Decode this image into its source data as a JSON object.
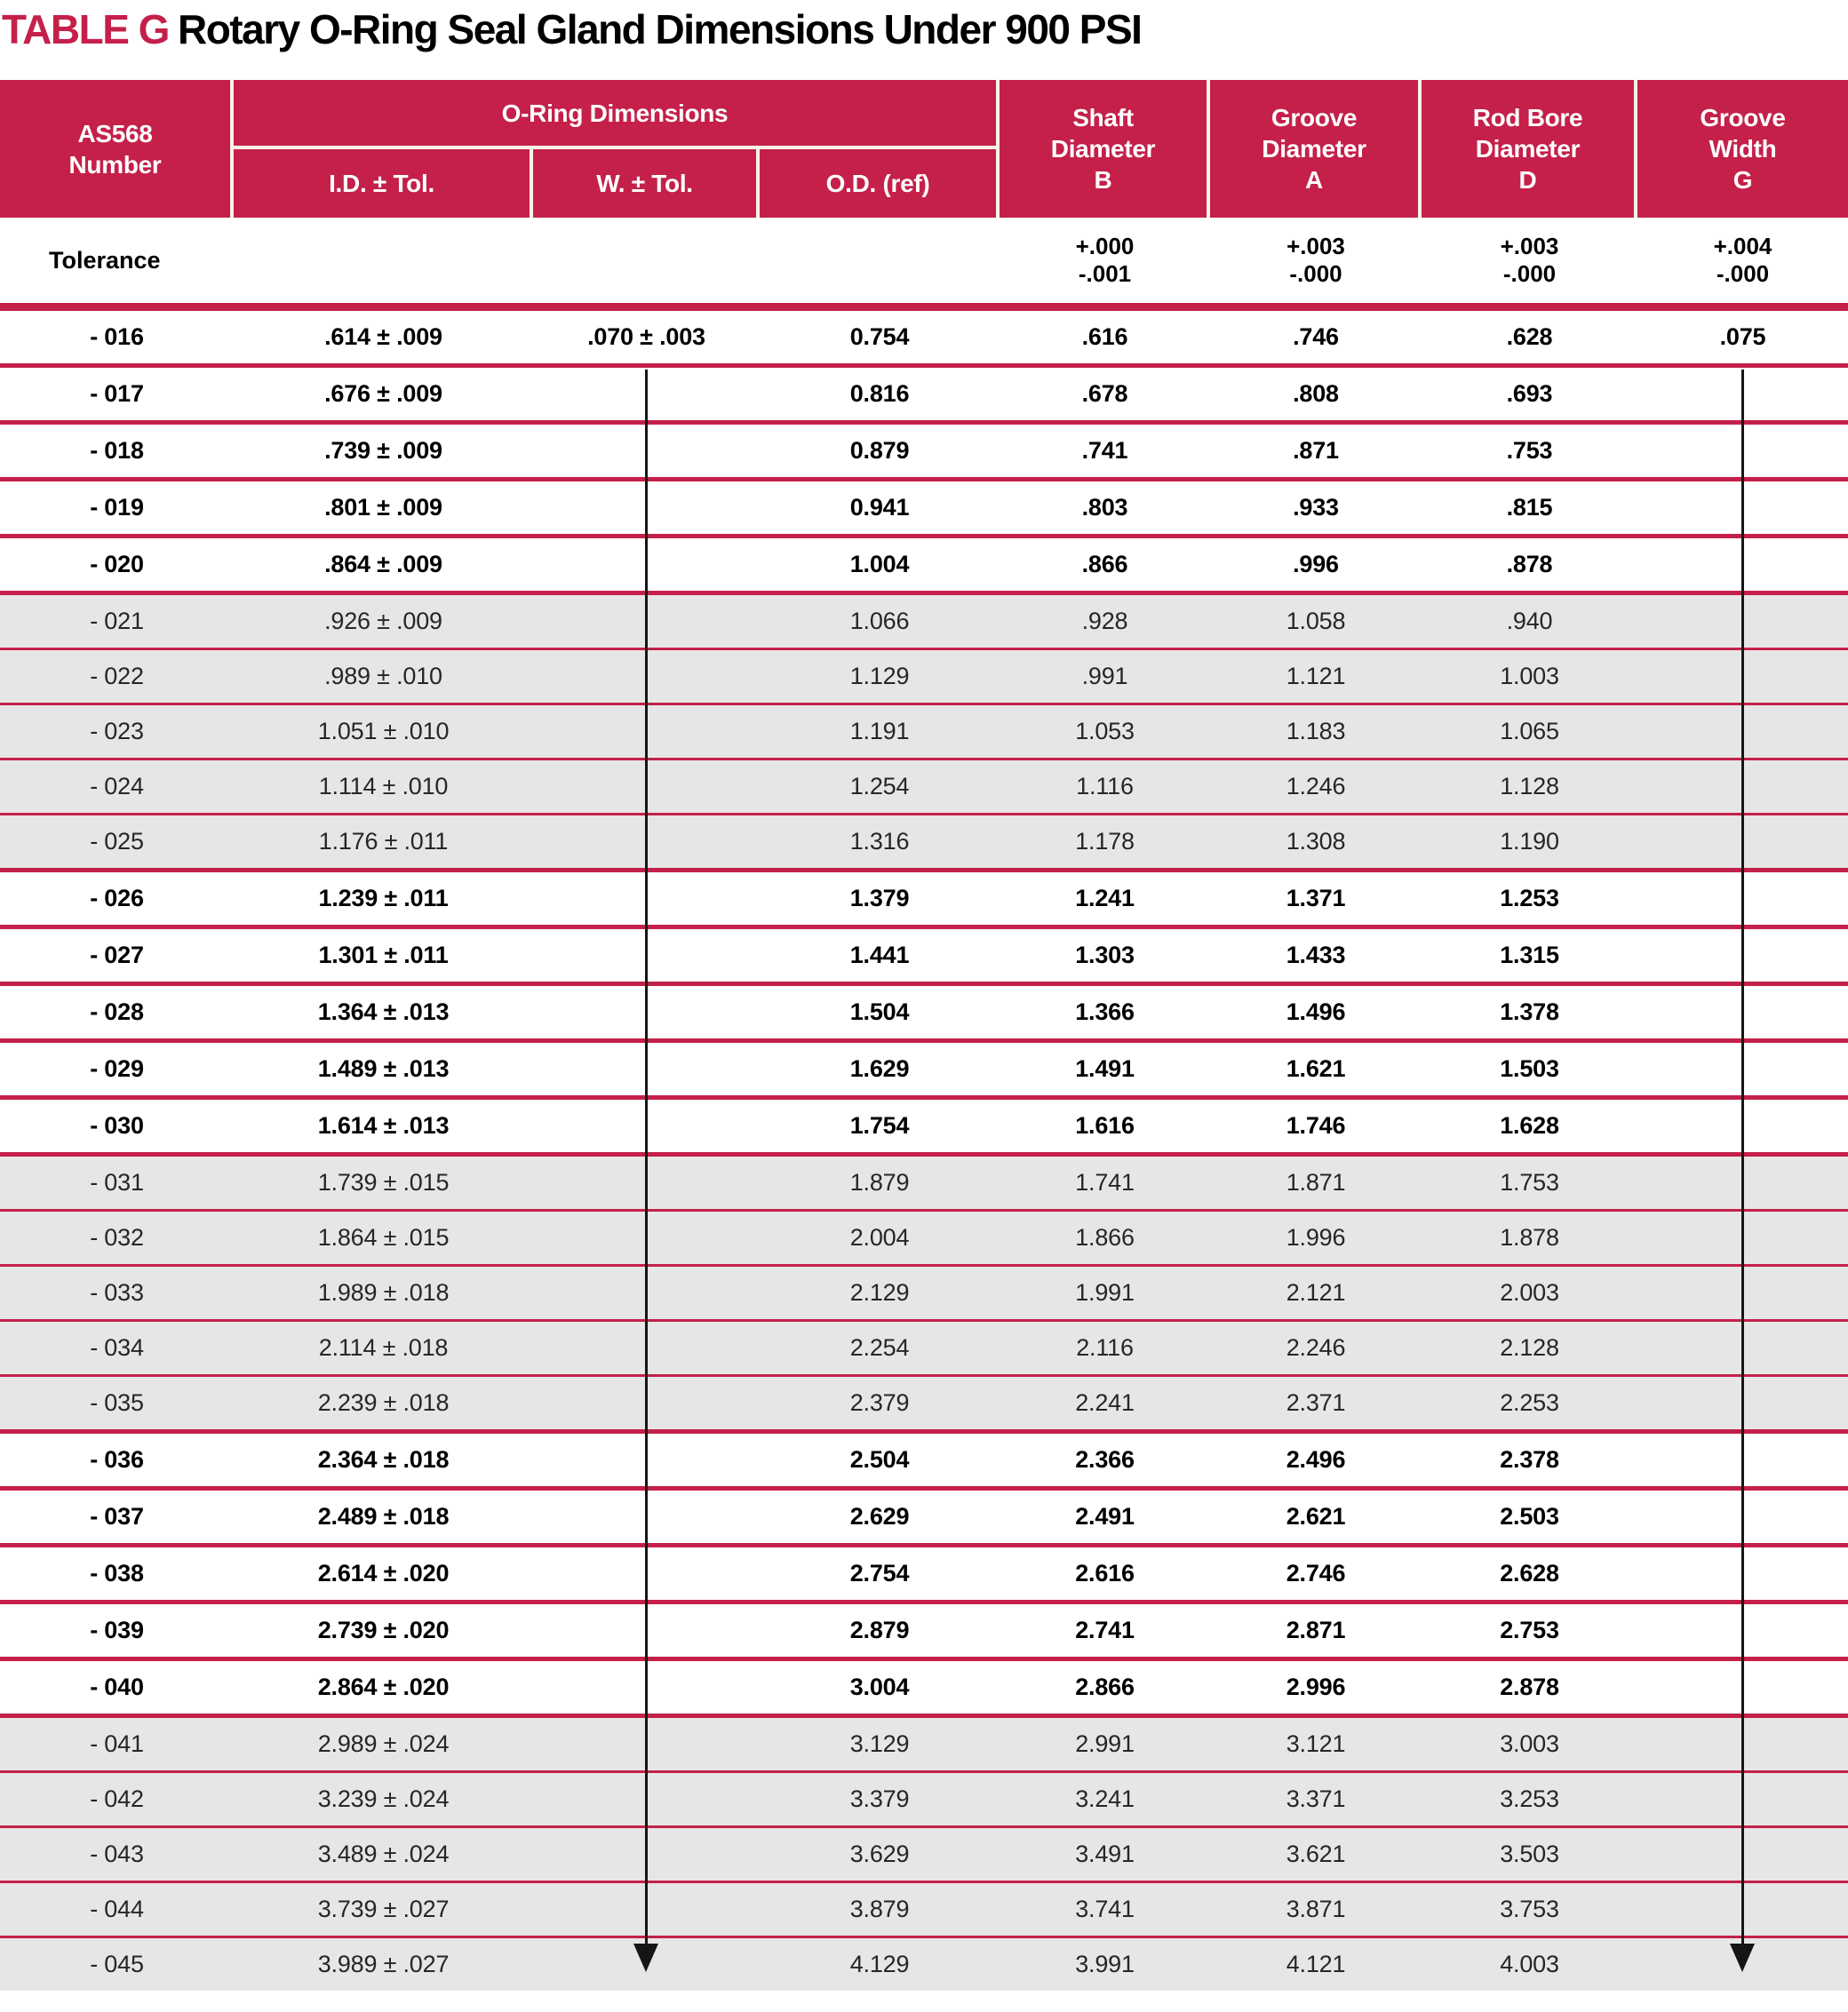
{
  "title": {
    "tag": "TABLE G",
    "text": "Rotary O-Ring Seal Gland Dimensions Under 900 PSI"
  },
  "colors": {
    "accent_crimson": "#C4204A",
    "row_alt_gray": "#E6E6E6",
    "header_text": "#FFFFFF",
    "arrow_black": "#151515"
  },
  "header": {
    "as568": "AS568\nNumber",
    "oring_group": "O-Ring Dimensions",
    "id_tol": "I.D. ± Tol.",
    "w_tol": "W. ± Tol.",
    "od_ref": "O.D. (ref)",
    "shaft": "Shaft\nDiameter\nB",
    "groove_dia": "Groove\nDiameter\nA",
    "rod_bore": "Rod Bore\nDiameter\nD",
    "groove_width": "Groove\nWidth\nG"
  },
  "tolerance_row": {
    "label": "Tolerance",
    "shaft_b": "+.000\n-.001",
    "groove_a": "+.003\n-.000",
    "rod_bore_d": "+.003\n-.000",
    "groove_g": "+.004\n-.000"
  },
  "table": {
    "columns": [
      "AS568 Number",
      "I.D. ± Tol.",
      "W. ± Tol.",
      "O.D. (ref)",
      "Shaft Diameter B",
      "Groove Diameter A",
      "Rod Bore Diameter D",
      "Groove Width G"
    ],
    "rows": [
      [
        "- 016",
        ".614 ± .009",
        ".070 ± .003",
        "0.754",
        ".616",
        ".746",
        ".628",
        ".075"
      ],
      [
        "- 017",
        ".676 ± .009",
        "",
        "0.816",
        ".678",
        ".808",
        ".693",
        ""
      ],
      [
        "- 018",
        ".739 ± .009",
        "",
        "0.879",
        ".741",
        ".871",
        ".753",
        ""
      ],
      [
        "- 019",
        ".801 ± .009",
        "",
        "0.941",
        ".803",
        ".933",
        ".815",
        ""
      ],
      [
        "- 020",
        ".864 ± .009",
        "",
        "1.004",
        ".866",
        ".996",
        ".878",
        ""
      ],
      [
        "- 021",
        ".926 ± .009",
        "",
        "1.066",
        ".928",
        "1.058",
        ".940",
        ""
      ],
      [
        "- 022",
        ".989 ± .010",
        "",
        "1.129",
        ".991",
        "1.121",
        "1.003",
        ""
      ],
      [
        "- 023",
        "1.051 ± .010",
        "",
        "1.191",
        "1.053",
        "1.183",
        "1.065",
        ""
      ],
      [
        "- 024",
        "1.114 ± .010",
        "",
        "1.254",
        "1.116",
        "1.246",
        "1.128",
        ""
      ],
      [
        "- 025",
        "1.176 ± .011",
        "",
        "1.316",
        "1.178",
        "1.308",
        "1.190",
        ""
      ],
      [
        "- 026",
        "1.239 ± .011",
        "",
        "1.379",
        "1.241",
        "1.371",
        "1.253",
        ""
      ],
      [
        "- 027",
        "1.301 ± .011",
        "",
        "1.441",
        "1.303",
        "1.433",
        "1.315",
        ""
      ],
      [
        "- 028",
        "1.364 ± .013",
        "",
        "1.504",
        "1.366",
        "1.496",
        "1.378",
        ""
      ],
      [
        "- 029",
        "1.489 ± .013",
        "",
        "1.629",
        "1.491",
        "1.621",
        "1.503",
        ""
      ],
      [
        "- 030",
        "1.614 ± .013",
        "",
        "1.754",
        "1.616",
        "1.746",
        "1.628",
        ""
      ],
      [
        "- 031",
        "1.739 ± .015",
        "",
        "1.879",
        "1.741",
        "1.871",
        "1.753",
        ""
      ],
      [
        "- 032",
        "1.864 ± .015",
        "",
        "2.004",
        "1.866",
        "1.996",
        "1.878",
        ""
      ],
      [
        "- 033",
        "1.989 ± .018",
        "",
        "2.129",
        "1.991",
        "2.121",
        "2.003",
        ""
      ],
      [
        "- 034",
        "2.114 ± .018",
        "",
        "2.254",
        "2.116",
        "2.246",
        "2.128",
        ""
      ],
      [
        "- 035",
        "2.239 ± .018",
        "",
        "2.379",
        "2.241",
        "2.371",
        "2.253",
        ""
      ],
      [
        "- 036",
        "2.364 ± .018",
        "",
        "2.504",
        "2.366",
        "2.496",
        "2.378",
        ""
      ],
      [
        "- 037",
        "2.489 ± .018",
        "",
        "2.629",
        "2.491",
        "2.621",
        "2.503",
        ""
      ],
      [
        "- 038",
        "2.614 ± .020",
        "",
        "2.754",
        "2.616",
        "2.746",
        "2.628",
        ""
      ],
      [
        "- 039",
        "2.739 ± .020",
        "",
        "2.879",
        "2.741",
        "2.871",
        "2.753",
        ""
      ],
      [
        "- 040",
        "2.864 ± .020",
        "",
        "3.004",
        "2.866",
        "2.996",
        "2.878",
        ""
      ],
      [
        "- 041",
        "2.989 ± .024",
        "",
        "3.129",
        "2.991",
        "3.121",
        "3.003",
        ""
      ],
      [
        "- 042",
        "3.239 ± .024",
        "",
        "3.379",
        "3.241",
        "3.371",
        "3.253",
        ""
      ],
      [
        "- 043",
        "3.489 ± .024",
        "",
        "3.629",
        "3.491",
        "3.621",
        "3.503",
        ""
      ],
      [
        "- 044",
        "3.739 ± .027",
        "",
        "3.879",
        "3.741",
        "3.871",
        "3.753",
        ""
      ],
      [
        "- 045",
        "3.989 ± .027",
        "",
        "4.129",
        "3.991",
        "4.121",
        "4.003",
        ""
      ]
    ],
    "ditto_arrows": [
      {
        "column": "W. ± Tol.",
        "meaning": "value .070 ± .003 continues for rows -017 through -045"
      },
      {
        "column": "Groove Width G",
        "meaning": "value .075 continues for rows -017 through -045"
      }
    ]
  }
}
